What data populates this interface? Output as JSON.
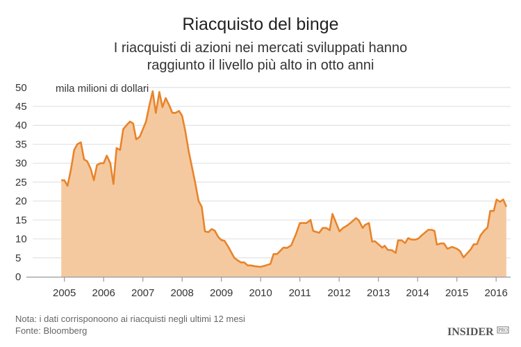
{
  "chart_data": {
    "type": "area",
    "title": "Riacquisto del binge",
    "subtitle": [
      "I riacquisti di azioni nei mercati sviluppati hanno",
      "raggiunto il livello più alto in otto anni"
    ],
    "ylabel": "mila milioni di dollari",
    "xlabel": "",
    "ylim": [
      0,
      50
    ],
    "xlim": [
      2004.5,
      2016.45
    ],
    "yticks": [
      0,
      5,
      10,
      15,
      20,
      25,
      30,
      35,
      40,
      45,
      50
    ],
    "xticks": [
      2005,
      2006,
      2007,
      2008,
      2009,
      2010,
      2011,
      2012,
      2013,
      2014,
      2015,
      2016
    ],
    "grid": true,
    "line_color": "#e8842a",
    "fill_color": "#f5c9a0",
    "x": [
      2004.92,
      2005.0,
      2005.08,
      2005.17,
      2005.25,
      2005.33,
      2005.42,
      2005.5,
      2005.58,
      2005.67,
      2005.75,
      2005.83,
      2005.92,
      2006.0,
      2006.08,
      2006.17,
      2006.25,
      2006.33,
      2006.42,
      2006.5,
      2006.58,
      2006.67,
      2006.75,
      2006.83,
      2006.92,
      2007.0,
      2007.08,
      2007.17,
      2007.25,
      2007.33,
      2007.42,
      2007.5,
      2007.58,
      2007.67,
      2007.75,
      2007.83,
      2007.92,
      2008.0,
      2008.08,
      2008.17,
      2008.25,
      2008.33,
      2008.42,
      2008.5,
      2008.58,
      2008.67,
      2008.75,
      2008.83,
      2008.92,
      2009.0,
      2009.08,
      2009.17,
      2009.25,
      2009.33,
      2009.42,
      2009.5,
      2009.58,
      2009.67,
      2009.75,
      2009.85,
      2009.93,
      2010.0,
      2010.13,
      2010.25,
      2010.33,
      2010.42,
      2010.58,
      2010.67,
      2010.78,
      2010.9,
      2011.0,
      2011.17,
      2011.27,
      2011.34,
      2011.49,
      2011.58,
      2011.67,
      2011.76,
      2011.83,
      2012.01,
      2012.1,
      2012.2,
      2012.31,
      2012.43,
      2012.5,
      2012.6,
      2012.66,
      2012.76,
      2012.84,
      2012.91,
      2013.0,
      2013.1,
      2013.16,
      2013.24,
      2013.35,
      2013.44,
      2013.5,
      2013.6,
      2013.68,
      2013.76,
      2013.85,
      2013.94,
      2014.02,
      2014.11,
      2014.27,
      2014.36,
      2014.43,
      2014.49,
      2014.59,
      2014.67,
      2014.76,
      2014.88,
      2015.0,
      2015.08,
      2015.17,
      2015.27,
      2015.35,
      2015.43,
      2015.51,
      2015.6,
      2015.69,
      2015.78,
      2015.85,
      2015.94,
      2016.01,
      2016.1,
      2016.18,
      2016.26
    ],
    "values": [
      25.5,
      25.5,
      24,
      28.5,
      33.5,
      35,
      35.5,
      31,
      30.5,
      28.5,
      25.5,
      29.5,
      30,
      30,
      32,
      30,
      24.5,
      34,
      33.5,
      39,
      40,
      41,
      40.5,
      36.3,
      37,
      39,
      41,
      45.5,
      49,
      43.3,
      48.8,
      44.8,
      47.2,
      45.3,
      43.3,
      43.3,
      43.8,
      42.5,
      38.5,
      33,
      29,
      25,
      20,
      18.5,
      12,
      11.8,
      12.6,
      12.2,
      10.5,
      9.7,
      9.5,
      8,
      6.5,
      5,
      4.3,
      3.8,
      3.8,
      3,
      3,
      2.8,
      2.7,
      2.6,
      3.0,
      3.4,
      6.0,
      6.0,
      7.7,
      7.6,
      8.3,
      11.3,
      14.2,
      14.2,
      15.0,
      12.1,
      11.6,
      12.9,
      12.9,
      12.3,
      16.6,
      12,
      12.9,
      13.5,
      14.4,
      15.5,
      14.9,
      12.9,
      13.7,
      14.2,
      9.3,
      9.4,
      8.6,
      7.7,
      8.2,
      7.1,
      7.0,
      6.3,
      9.6,
      9.6,
      8.9,
      10.2,
      9.8,
      9.8,
      10.1,
      11.0,
      12.4,
      12.4,
      12.1,
      8.5,
      8.8,
      8.8,
      7.4,
      7.9,
      7.4,
      6.8,
      5.1,
      6.3,
      7.2,
      8.6,
      8.6,
      10.9,
      12.1,
      13.0,
      17.4,
      17.4,
      20.4,
      19.8,
      20.4,
      18.5
    ]
  },
  "footer": {
    "note": "Nota: i dati corrisponoono ai riacquisti negli ultimi 12 mesi",
    "source": "Fonte: Bloomberg",
    "logo": "INSIDER",
    "logo_badge": "PRO"
  }
}
